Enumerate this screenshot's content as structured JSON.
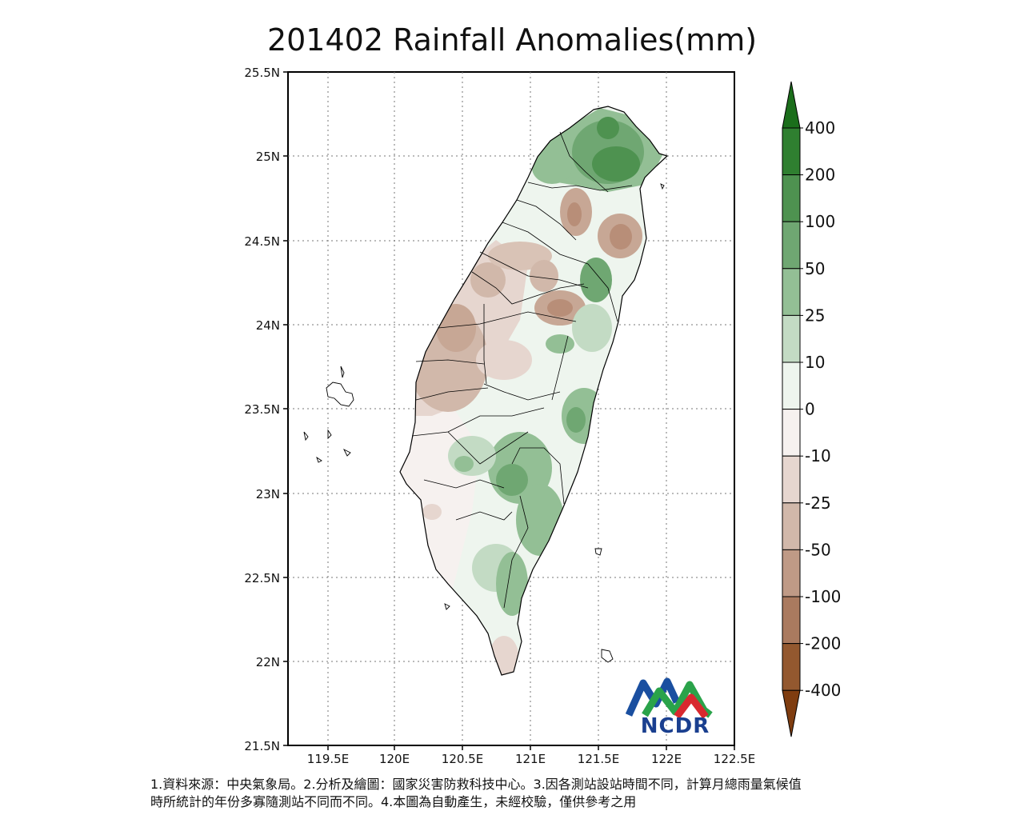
{
  "title": "201402 Rainfall Anomalies(mm)",
  "axes": {
    "lat_ticks": [
      "25.5N",
      "25N",
      "24.5N",
      "24N",
      "23.5N",
      "23N",
      "22.5N",
      "22N",
      "21.5N"
    ],
    "lon_ticks": [
      "119.5E",
      "120E",
      "120.5E",
      "121E",
      "121.5E",
      "122E",
      "122.5E"
    ]
  },
  "colorbar": {
    "labels": [
      "400",
      "200",
      "100",
      "50",
      "25",
      "10",
      "0",
      "-10",
      "-25",
      "-50",
      "-100",
      "-200",
      "-400"
    ],
    "colors": [
      "#1b6e1b",
      "#2f7f30",
      "#4e9250",
      "#6fa772",
      "#93bf95",
      "#c3dbc4",
      "#eef5ee",
      "#f6f1ef",
      "#e6d6cf",
      "#d1b8aa",
      "#bf9a86",
      "#aa7a5f",
      "#93582f",
      "#7f3d10"
    ]
  },
  "logo": {
    "text": "NCDR",
    "colors": {
      "blue": "#1a4fa0",
      "green": "#2aa34a",
      "red": "#d8292f"
    }
  },
  "notes": [
    "1.資料來源：中央氣象局。2.分析及繪圖：國家災害防救科技中心。3.因各測站設站時間不同，計算月總雨量氣候值",
    "時所統計的年份多寡隨測站不同而不同。4.本圖為自動產生，未經校驗，僅供參考之用"
  ]
}
